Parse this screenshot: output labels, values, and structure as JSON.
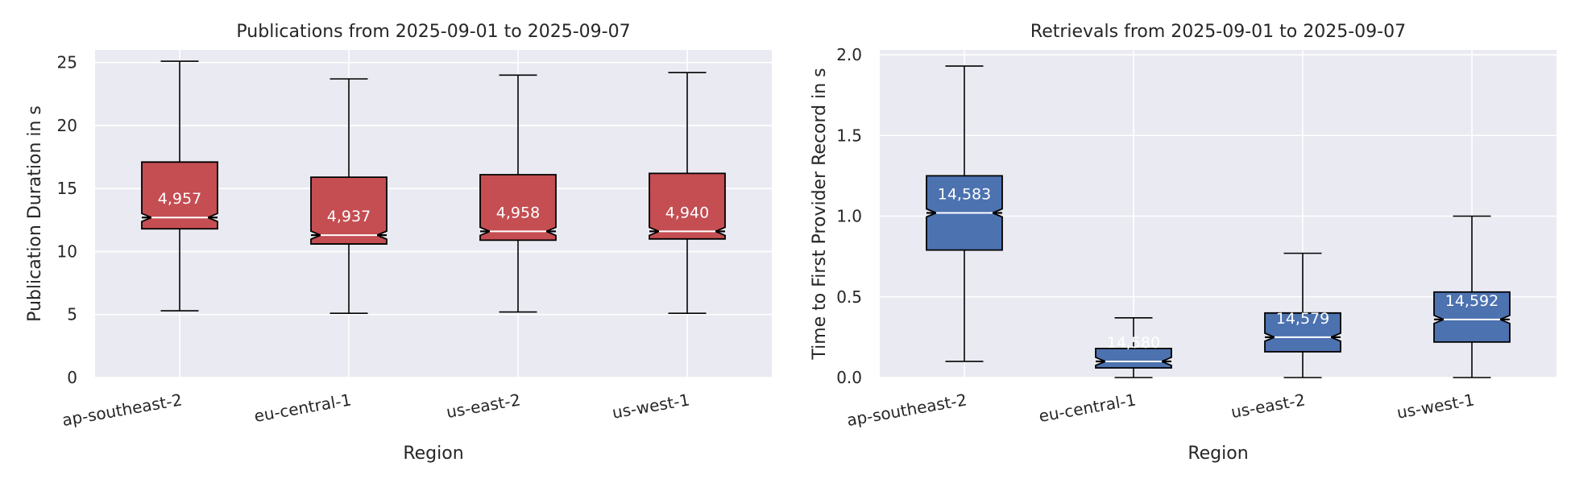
{
  "chart_data": [
    {
      "type": "box",
      "title": "Publications from 2025-09-01 to 2025-09-07",
      "xlabel": "Region",
      "ylabel": "Publication Duration in s",
      "ylim": [
        0,
        26
      ],
      "yticks": [
        0,
        5,
        10,
        15,
        20,
        25
      ],
      "ytick_labels": [
        "0",
        "5",
        "10",
        "15",
        "20",
        "25"
      ],
      "categories": [
        "ap-southeast-2",
        "eu-central-1",
        "us-east-2",
        "us-west-1"
      ],
      "boxes": [
        {
          "whisker_low": 5.3,
          "q1": 11.8,
          "median": 12.7,
          "q3": 17.1,
          "whisker_high": 25.1,
          "count": "4,957"
        },
        {
          "whisker_low": 5.1,
          "q1": 10.6,
          "median": 11.3,
          "q3": 15.9,
          "whisker_high": 23.7,
          "count": "4,937"
        },
        {
          "whisker_low": 5.2,
          "q1": 10.9,
          "median": 11.6,
          "q3": 16.1,
          "whisker_high": 24.0,
          "count": "4,958"
        },
        {
          "whisker_low": 5.1,
          "q1": 11.0,
          "median": 11.6,
          "q3": 16.2,
          "whisker_high": 24.2,
          "count": "4,940"
        }
      ],
      "color": "#c44e52",
      "grid": true
    },
    {
      "type": "box",
      "title": "Retrievals from 2025-09-01 to 2025-09-07",
      "xlabel": "Region",
      "ylabel": "Time to First Provider Record in s",
      "ylim": [
        0,
        2.03
      ],
      "yticks": [
        0,
        0.5,
        1.0,
        1.5,
        2.0
      ],
      "ytick_labels": [
        "0.0",
        "0.5",
        "1.0",
        "1.5",
        "2.0"
      ],
      "categories": [
        "ap-southeast-2",
        "eu-central-1",
        "us-east-2",
        "us-west-1"
      ],
      "boxes": [
        {
          "whisker_low": 0.1,
          "q1": 0.79,
          "median": 1.02,
          "q3": 1.25,
          "whisker_high": 1.93,
          "count": "14,583"
        },
        {
          "whisker_low": 0.0,
          "q1": 0.06,
          "median": 0.1,
          "q3": 0.18,
          "whisker_high": 0.37,
          "count": "14,580"
        },
        {
          "whisker_low": 0.0,
          "q1": 0.16,
          "median": 0.25,
          "q3": 0.4,
          "whisker_high": 0.77,
          "count": "14,579"
        },
        {
          "whisker_low": 0.0,
          "q1": 0.22,
          "median": 0.36,
          "q3": 0.53,
          "whisker_high": 1.0,
          "count": "14,592"
        }
      ],
      "color": "#4c72b0",
      "grid": true
    }
  ]
}
